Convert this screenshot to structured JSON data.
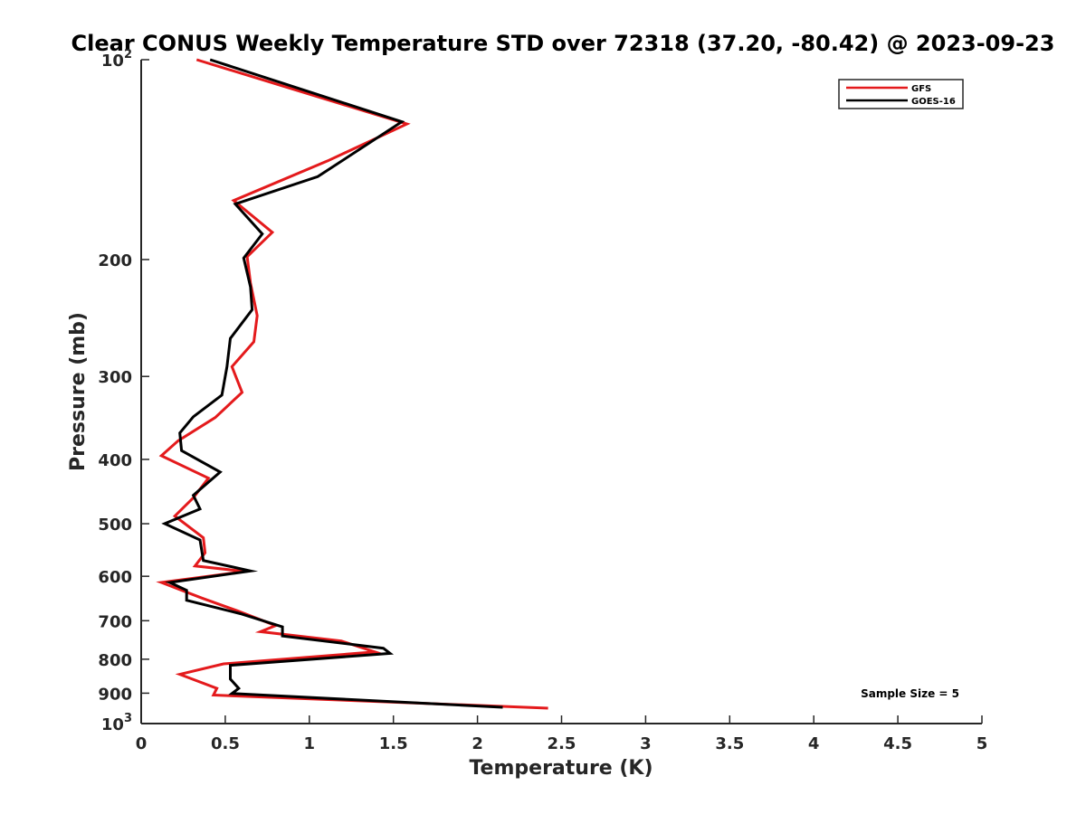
{
  "chart_data": {
    "type": "line",
    "title": "Clear CONUS Weekly Temperature STD over 72318 (37.20, -80.42) @ 2023-09-23",
    "xlabel": "Temperature (K)",
    "ylabel": "Pressure (mb)",
    "xlim": [
      0,
      5
    ],
    "ylim": [
      100,
      1000
    ],
    "yscale": "log",
    "yreversed": true,
    "x_ticks": [
      "0",
      "0.5",
      "1",
      "1.5",
      "2",
      "2.5",
      "3",
      "3.5",
      "4",
      "4.5",
      "5"
    ],
    "y_ticks": [
      {
        "value": 100,
        "base": "10",
        "exp": "2"
      },
      {
        "value": 200,
        "label": "200"
      },
      {
        "value": 300,
        "label": "300"
      },
      {
        "value": 400,
        "label": "400"
      },
      {
        "value": 500,
        "label": "500"
      },
      {
        "value": 600,
        "label": "600"
      },
      {
        "value": 700,
        "label": "700"
      },
      {
        "value": 800,
        "label": "800"
      },
      {
        "value": 900,
        "label": "900"
      },
      {
        "value": 1000,
        "base": "10",
        "exp": "3"
      }
    ],
    "legend_position": "top-right",
    "annotation": "Sample Size = 5",
    "series": [
      {
        "name": "GFS",
        "color": "#e41a1c",
        "points": [
          [
            0.33,
            100
          ],
          [
            1.58,
            125
          ],
          [
            1.11,
            142
          ],
          [
            0.55,
            163
          ],
          [
            0.78,
            182
          ],
          [
            0.63,
            198
          ],
          [
            0.65,
            217
          ],
          [
            0.69,
            243
          ],
          [
            0.67,
            266
          ],
          [
            0.54,
            290
          ],
          [
            0.6,
            317
          ],
          [
            0.44,
            346
          ],
          [
            0.22,
            375
          ],
          [
            0.12,
            395
          ],
          [
            0.4,
            427
          ],
          [
            0.31,
            457
          ],
          [
            0.2,
            487
          ],
          [
            0.37,
            525
          ],
          [
            0.38,
            553
          ],
          [
            0.32,
            579
          ],
          [
            0.62,
            590
          ],
          [
            0.12,
            613
          ],
          [
            0.36,
            647
          ],
          [
            0.57,
            676
          ],
          [
            0.8,
            712
          ],
          [
            0.71,
            727
          ],
          [
            1.19,
            751
          ],
          [
            1.39,
            780
          ],
          [
            0.49,
            813
          ],
          [
            0.23,
            843
          ],
          [
            0.45,
            885
          ],
          [
            0.43,
            906
          ],
          [
            2.42,
            948
          ]
        ]
      },
      {
        "name": "GOES-16",
        "color": "#000000",
        "points": [
          [
            0.41,
            100
          ],
          [
            1.55,
            124
          ],
          [
            1.05,
            150
          ],
          [
            0.56,
            165
          ],
          [
            0.72,
            183
          ],
          [
            0.61,
            199
          ],
          [
            0.65,
            220
          ],
          [
            0.66,
            238
          ],
          [
            0.53,
            263
          ],
          [
            0.51,
            290
          ],
          [
            0.48,
            320
          ],
          [
            0.31,
            345
          ],
          [
            0.23,
            365
          ],
          [
            0.24,
            388
          ],
          [
            0.47,
            418
          ],
          [
            0.31,
            453
          ],
          [
            0.35,
            475
          ],
          [
            0.14,
            500
          ],
          [
            0.35,
            529
          ],
          [
            0.37,
            568
          ],
          [
            0.65,
            589
          ],
          [
            0.17,
            613
          ],
          [
            0.27,
            630
          ],
          [
            0.27,
            652
          ],
          [
            0.59,
            683
          ],
          [
            0.84,
            715
          ],
          [
            0.84,
            738
          ],
          [
            1.44,
            770
          ],
          [
            1.48,
            784
          ],
          [
            0.53,
            817
          ],
          [
            0.53,
            857
          ],
          [
            0.58,
            885
          ],
          [
            0.54,
            901
          ],
          [
            2.15,
            945
          ]
        ]
      }
    ]
  }
}
